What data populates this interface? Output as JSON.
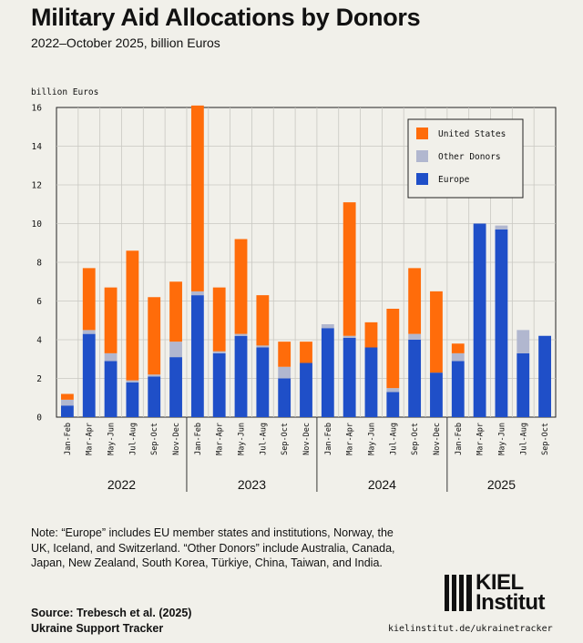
{
  "header": {
    "title": "Military Aid Allocations by Donors",
    "subtitle": "2022–October 2025, billion Euros"
  },
  "chart_data": {
    "type": "bar",
    "stacked": true,
    "ylabel": "billion Euros",
    "ylim": [
      0,
      16
    ],
    "yticks": [
      0,
      2,
      4,
      6,
      8,
      10,
      12,
      14,
      16
    ],
    "grid": true,
    "legend_position": "top-right",
    "categories": [
      "Jan-Feb",
      "Mar-Apr",
      "May-Jun",
      "Jul-Aug",
      "Sep-Oct",
      "Nov-Dec",
      "Jan-Feb",
      "Mar-Apr",
      "May-Jun",
      "Jul-Aug",
      "Sep-Oct",
      "Nov-Dec",
      "Jan-Feb",
      "Mar-Apr",
      "May-Jun",
      "Jul-Aug",
      "Sep-Oct",
      "Nov-Dec",
      "Jan-Feb",
      "Mar-Apr",
      "May-Jun",
      "Jul-Aug",
      "Sep-Oct"
    ],
    "years": [
      {
        "label": "2022",
        "start": 0,
        "end": 5
      },
      {
        "label": "2023",
        "start": 6,
        "end": 11
      },
      {
        "label": "2024",
        "start": 12,
        "end": 17
      },
      {
        "label": "2025",
        "start": 18,
        "end": 22
      }
    ],
    "series": [
      {
        "name": "Europe",
        "color": "#1f4fc8",
        "values": [
          0.6,
          4.3,
          2.9,
          1.8,
          2.1,
          3.1,
          6.3,
          3.3,
          4.2,
          3.6,
          2.0,
          2.8,
          4.6,
          4.1,
          3.6,
          1.3,
          4.0,
          2.3,
          2.9,
          10.0,
          9.7,
          3.3,
          4.2
        ]
      },
      {
        "name": "Other Donors",
        "color": "#b1b7cf",
        "values": [
          0.3,
          0.2,
          0.4,
          0.1,
          0.1,
          0.8,
          0.2,
          0.1,
          0.1,
          0.1,
          0.6,
          0.0,
          0.2,
          0.1,
          0.0,
          0.2,
          0.3,
          0.0,
          0.4,
          0.0,
          0.2,
          1.2,
          0.0
        ]
      },
      {
        "name": "United States",
        "color": "#ff6c0a",
        "values": [
          0.3,
          3.2,
          3.4,
          6.7,
          4.0,
          3.1,
          9.6,
          3.3,
          4.9,
          2.6,
          1.3,
          1.1,
          0.0,
          6.9,
          1.3,
          4.1,
          3.4,
          4.2,
          0.5,
          0.0,
          0.0,
          0.0,
          0.0
        ]
      }
    ],
    "legend_order": [
      "United States",
      "Other Donors",
      "Europe"
    ]
  },
  "footer": {
    "note": "Note: “Europe” includes EU member states and institutions, Norway, the UK, Iceland, and Switzerland. “Other Donors” include Australia, Canada, Japan, New Zealand, South Korea, Türkiye, China, Taiwan, and India.",
    "source_line1": "Source: Trebesch et al. (2025)",
    "source_line2": "Ukraine Support Tracker",
    "logo_line1": "KIEL",
    "logo_line2": "Institut",
    "url": "kielinstitut.de/ukrainetracker"
  }
}
